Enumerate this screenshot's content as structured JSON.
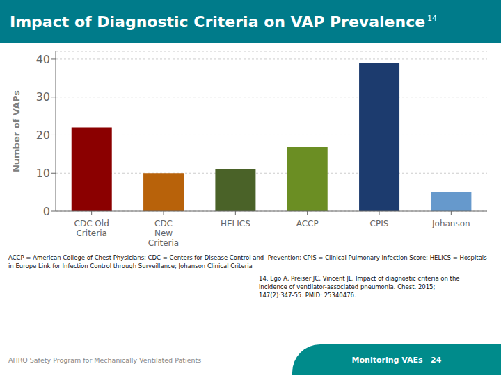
{
  "chart_data": {
    "type": "bar",
    "title": "Impact of Diagnostic Criteria on VAP Prevalence",
    "ylabel": "Number of VAPs",
    "categories": [
      "CDC Old\nCriteria",
      "CDC\nNew\nCriteria",
      "HELICS",
      "ACCP",
      "CPIS",
      "Johanson"
    ],
    "values": [
      22,
      10,
      11,
      17,
      39,
      5
    ],
    "colors": [
      "#8B0000",
      "#B8620A",
      "#4A6228",
      "#6B8E23",
      "#1C3B6E",
      "#6699CC"
    ],
    "ylim": [
      0,
      42
    ],
    "yticks": [
      0,
      10,
      20,
      30,
      40
    ],
    "grid": true,
    "annotations": [
      "14",
      "ACCP = American College of Chest Physicians; CDC = Centers for Disease Control and  Prevention; CPIS = Clinical Pulmonary Infection Score; HELICS = Hospitals\nin Europe Link for Infection Control through Surveillance; Johanson Clinical Criteria",
      "14. Ego A, Preiser JC, Vincent JL. Impact of diagnostic criteria on the\nincidence of ventilator-associated pneumonia. Chest. 2015;\n147(2):347-55. PMID: 25340476.",
      "AHRQ Safety Program for Mechanically Ventilated Patients",
      "Monitoring VAEs   24"
    ]
  }
}
